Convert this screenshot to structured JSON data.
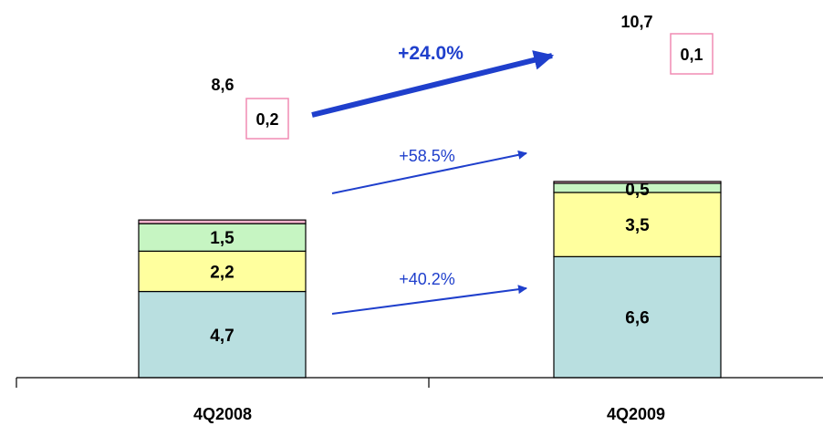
{
  "chart_data": {
    "type": "bar",
    "stacked": true,
    "categories": [
      "4Q2008",
      "4Q2009"
    ],
    "series": [
      {
        "values": [
          4.7,
          6.6
        ],
        "labels": [
          "4,7",
          "6,6"
        ],
        "color": "#b9dfe0"
      },
      {
        "values": [
          2.2,
          3.5
        ],
        "labels": [
          "2,2",
          "3,5"
        ],
        "color": "#ffff9e"
      },
      {
        "values": [
          1.5,
          0.5
        ],
        "labels": [
          "1,5",
          "0,5"
        ],
        "color": "#c6f5c2"
      },
      {
        "values": [
          0.2,
          0.1
        ],
        "labels": [
          "0,2",
          "0,1"
        ],
        "color": "#f4b3cc"
      }
    ],
    "totals": [
      "8,6",
      "10,7"
    ],
    "growth_labels": [
      "+40.2%",
      "+58.5%",
      "+24.0%"
    ],
    "legend": "none",
    "grid": false
  }
}
